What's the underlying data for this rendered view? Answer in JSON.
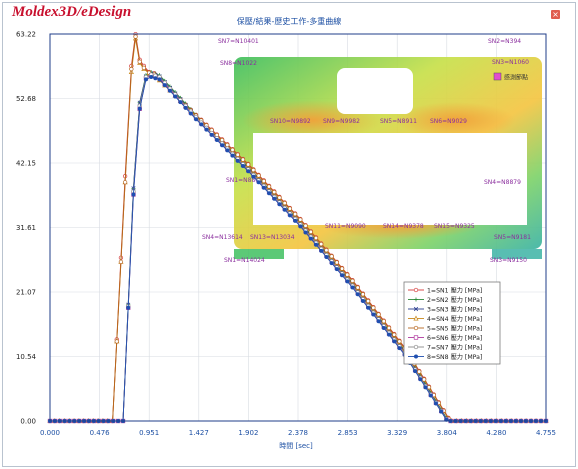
{
  "logo_text": "Moldex3D/eDesign",
  "window_title": "保壓/結果-歷史工作-多重曲線",
  "close_icon": "close-icon",
  "colors": {
    "plot_border": "#1f3c88",
    "grid": "#d7dbe2",
    "x_tick": "#1c4fa3"
  },
  "chart_data": {
    "type": "line",
    "xlabel": "時間 [sec]",
    "ylabel": "",
    "xlim": [
      0,
      4.755
    ],
    "ylim": [
      0,
      63.22
    ],
    "xticks": [
      "0.000",
      "0.476",
      "0.951",
      "1.427",
      "1.902",
      "2.378",
      "2.853",
      "3.329",
      "3.804",
      "4.280",
      "4.755"
    ],
    "yticks": [
      "0.00",
      "10.54",
      "21.07",
      "31.61",
      "42.15",
      "52.68",
      "63.22"
    ],
    "series": [
      {
        "name": "1=SN1 壓力 [MPa]",
        "color": "#d43a3a",
        "marker": "circle-open",
        "points": [
          [
            0,
            0
          ],
          [
            0.6,
            0
          ],
          [
            0.72,
            40
          ],
          [
            0.78,
            58
          ],
          [
            0.82,
            63.2
          ],
          [
            0.86,
            59
          ],
          [
            0.9,
            58
          ],
          [
            0.95,
            57
          ],
          [
            1.0,
            56.8
          ],
          [
            1.4,
            50
          ],
          [
            1.9,
            42
          ],
          [
            2.4,
            33
          ],
          [
            2.9,
            23
          ],
          [
            3.4,
            12
          ],
          [
            3.82,
            0.5
          ],
          [
            3.85,
            0
          ],
          [
            4.755,
            0
          ]
        ]
      },
      {
        "name": "2=SN2 壓力 [MPa]",
        "color": "#2e8b3a",
        "marker": "plus",
        "points": [
          [
            0,
            0
          ],
          [
            0.7,
            0
          ],
          [
            0.8,
            38
          ],
          [
            0.86,
            52
          ],
          [
            0.92,
            56.5
          ],
          [
            0.97,
            57
          ],
          [
            1.05,
            56.5
          ],
          [
            1.4,
            50
          ],
          [
            1.9,
            41.5
          ],
          [
            2.4,
            32.5
          ],
          [
            2.9,
            22.5
          ],
          [
            3.4,
            11.5
          ],
          [
            3.8,
            0.5
          ],
          [
            3.84,
            0
          ],
          [
            4.755,
            0
          ]
        ]
      },
      {
        "name": "3=SN3 壓力 [MPa]",
        "color": "#2a3d8f",
        "marker": "x",
        "points": [
          [
            0,
            0
          ],
          [
            0.7,
            0
          ],
          [
            0.8,
            38
          ],
          [
            0.86,
            52
          ],
          [
            0.92,
            56.3
          ],
          [
            0.97,
            56.8
          ],
          [
            1.05,
            56.3
          ],
          [
            1.4,
            49.8
          ],
          [
            1.9,
            41.3
          ],
          [
            2.4,
            32.3
          ],
          [
            2.9,
            22.3
          ],
          [
            3.4,
            11.3
          ],
          [
            3.8,
            0.4
          ],
          [
            3.84,
            0
          ],
          [
            4.755,
            0
          ]
        ]
      },
      {
        "name": "4=SN4 壓力 [MPa]",
        "color": "#c98a1e",
        "marker": "triangle-open",
        "points": [
          [
            0,
            0
          ],
          [
            0.6,
            0
          ],
          [
            0.72,
            39
          ],
          [
            0.78,
            57
          ],
          [
            0.82,
            62.5
          ],
          [
            0.86,
            58.5
          ],
          [
            0.9,
            57.5
          ],
          [
            0.95,
            56.8
          ],
          [
            1.0,
            56.5
          ],
          [
            1.4,
            49.8
          ],
          [
            1.9,
            41.8
          ],
          [
            2.4,
            32.8
          ],
          [
            2.9,
            22.8
          ],
          [
            3.4,
            11.8
          ],
          [
            3.82,
            0.4
          ],
          [
            3.85,
            0
          ],
          [
            4.755,
            0
          ]
        ]
      },
      {
        "name": "5=SN5 壓力 [MPa]",
        "color": "#b5651d",
        "marker": "circle-open",
        "points": [
          [
            0,
            0
          ],
          [
            0.6,
            0
          ],
          [
            0.72,
            39
          ],
          [
            0.78,
            57.5
          ],
          [
            0.82,
            62.8
          ],
          [
            0.86,
            58.7
          ],
          [
            0.9,
            57.7
          ],
          [
            0.95,
            56.9
          ],
          [
            1.0,
            56.6
          ],
          [
            1.4,
            49.9
          ],
          [
            1.9,
            41.9
          ],
          [
            2.4,
            32.9
          ],
          [
            2.9,
            22.9
          ],
          [
            3.4,
            11.9
          ],
          [
            3.82,
            0.4
          ],
          [
            3.85,
            0
          ],
          [
            4.755,
            0
          ]
        ]
      },
      {
        "name": "6=SN6 壓力 [MPa]",
        "color": "#b03aa0",
        "marker": "square-open",
        "points": [
          [
            0,
            0
          ],
          [
            0.7,
            0
          ],
          [
            0.8,
            37
          ],
          [
            0.86,
            51
          ],
          [
            0.92,
            56
          ],
          [
            0.97,
            56.5
          ],
          [
            1.05,
            56
          ],
          [
            1.4,
            49.5
          ],
          [
            1.9,
            41
          ],
          [
            2.4,
            32
          ],
          [
            2.9,
            22
          ],
          [
            3.4,
            11
          ],
          [
            3.8,
            0.3
          ],
          [
            3.84,
            0
          ],
          [
            4.755,
            0
          ]
        ]
      },
      {
        "name": "7=SN7 壓力 [MPa]",
        "color": "#8a8a8a",
        "marker": "circle-open",
        "points": [
          [
            0,
            0
          ],
          [
            0.7,
            0
          ],
          [
            0.8,
            37.5
          ],
          [
            0.86,
            51.5
          ],
          [
            0.92,
            56.2
          ],
          [
            0.97,
            56.6
          ],
          [
            1.05,
            56.2
          ],
          [
            1.4,
            49.6
          ],
          [
            1.9,
            41.1
          ],
          [
            2.4,
            32.1
          ],
          [
            2.9,
            22.1
          ],
          [
            3.4,
            11.1
          ],
          [
            3.8,
            0.3
          ],
          [
            3.84,
            0
          ],
          [
            4.755,
            0
          ]
        ]
      },
      {
        "name": "8=SN8 壓力 [MPa]",
        "color": "#1f4fb0",
        "marker": "circle-filled",
        "points": [
          [
            0,
            0
          ],
          [
            0.7,
            0
          ],
          [
            0.8,
            37
          ],
          [
            0.86,
            51
          ],
          [
            0.92,
            55.8
          ],
          [
            0.97,
            56.2
          ],
          [
            1.05,
            55.8
          ],
          [
            1.4,
            49.3
          ],
          [
            1.9,
            40.8
          ],
          [
            2.4,
            31.8
          ],
          [
            2.9,
            21.8
          ],
          [
            3.4,
            10.8
          ],
          [
            3.8,
            0.2
          ],
          [
            3.84,
            0
          ],
          [
            4.755,
            0
          ]
        ]
      }
    ]
  },
  "inset": {
    "sensor_labels": [
      "SN7=N10401",
      "SN2=N394",
      "SN8=N1022",
      "SN3=N1060",
      "SN10=N9892",
      "SN9=N9982",
      "SN5=N8911",
      "SN6=N9029",
      "SN1=N8801",
      "SN4=N8879",
      "SN13=N13034",
      "SN11=N9090",
      "SN14=N9378",
      "SN15=N9325",
      "SN4=N13614",
      "SN5=N9181",
      "SN1=N14024",
      "SN3=N9150"
    ],
    "legend_label": "感測節點",
    "legend_color": "#e24bd0"
  }
}
